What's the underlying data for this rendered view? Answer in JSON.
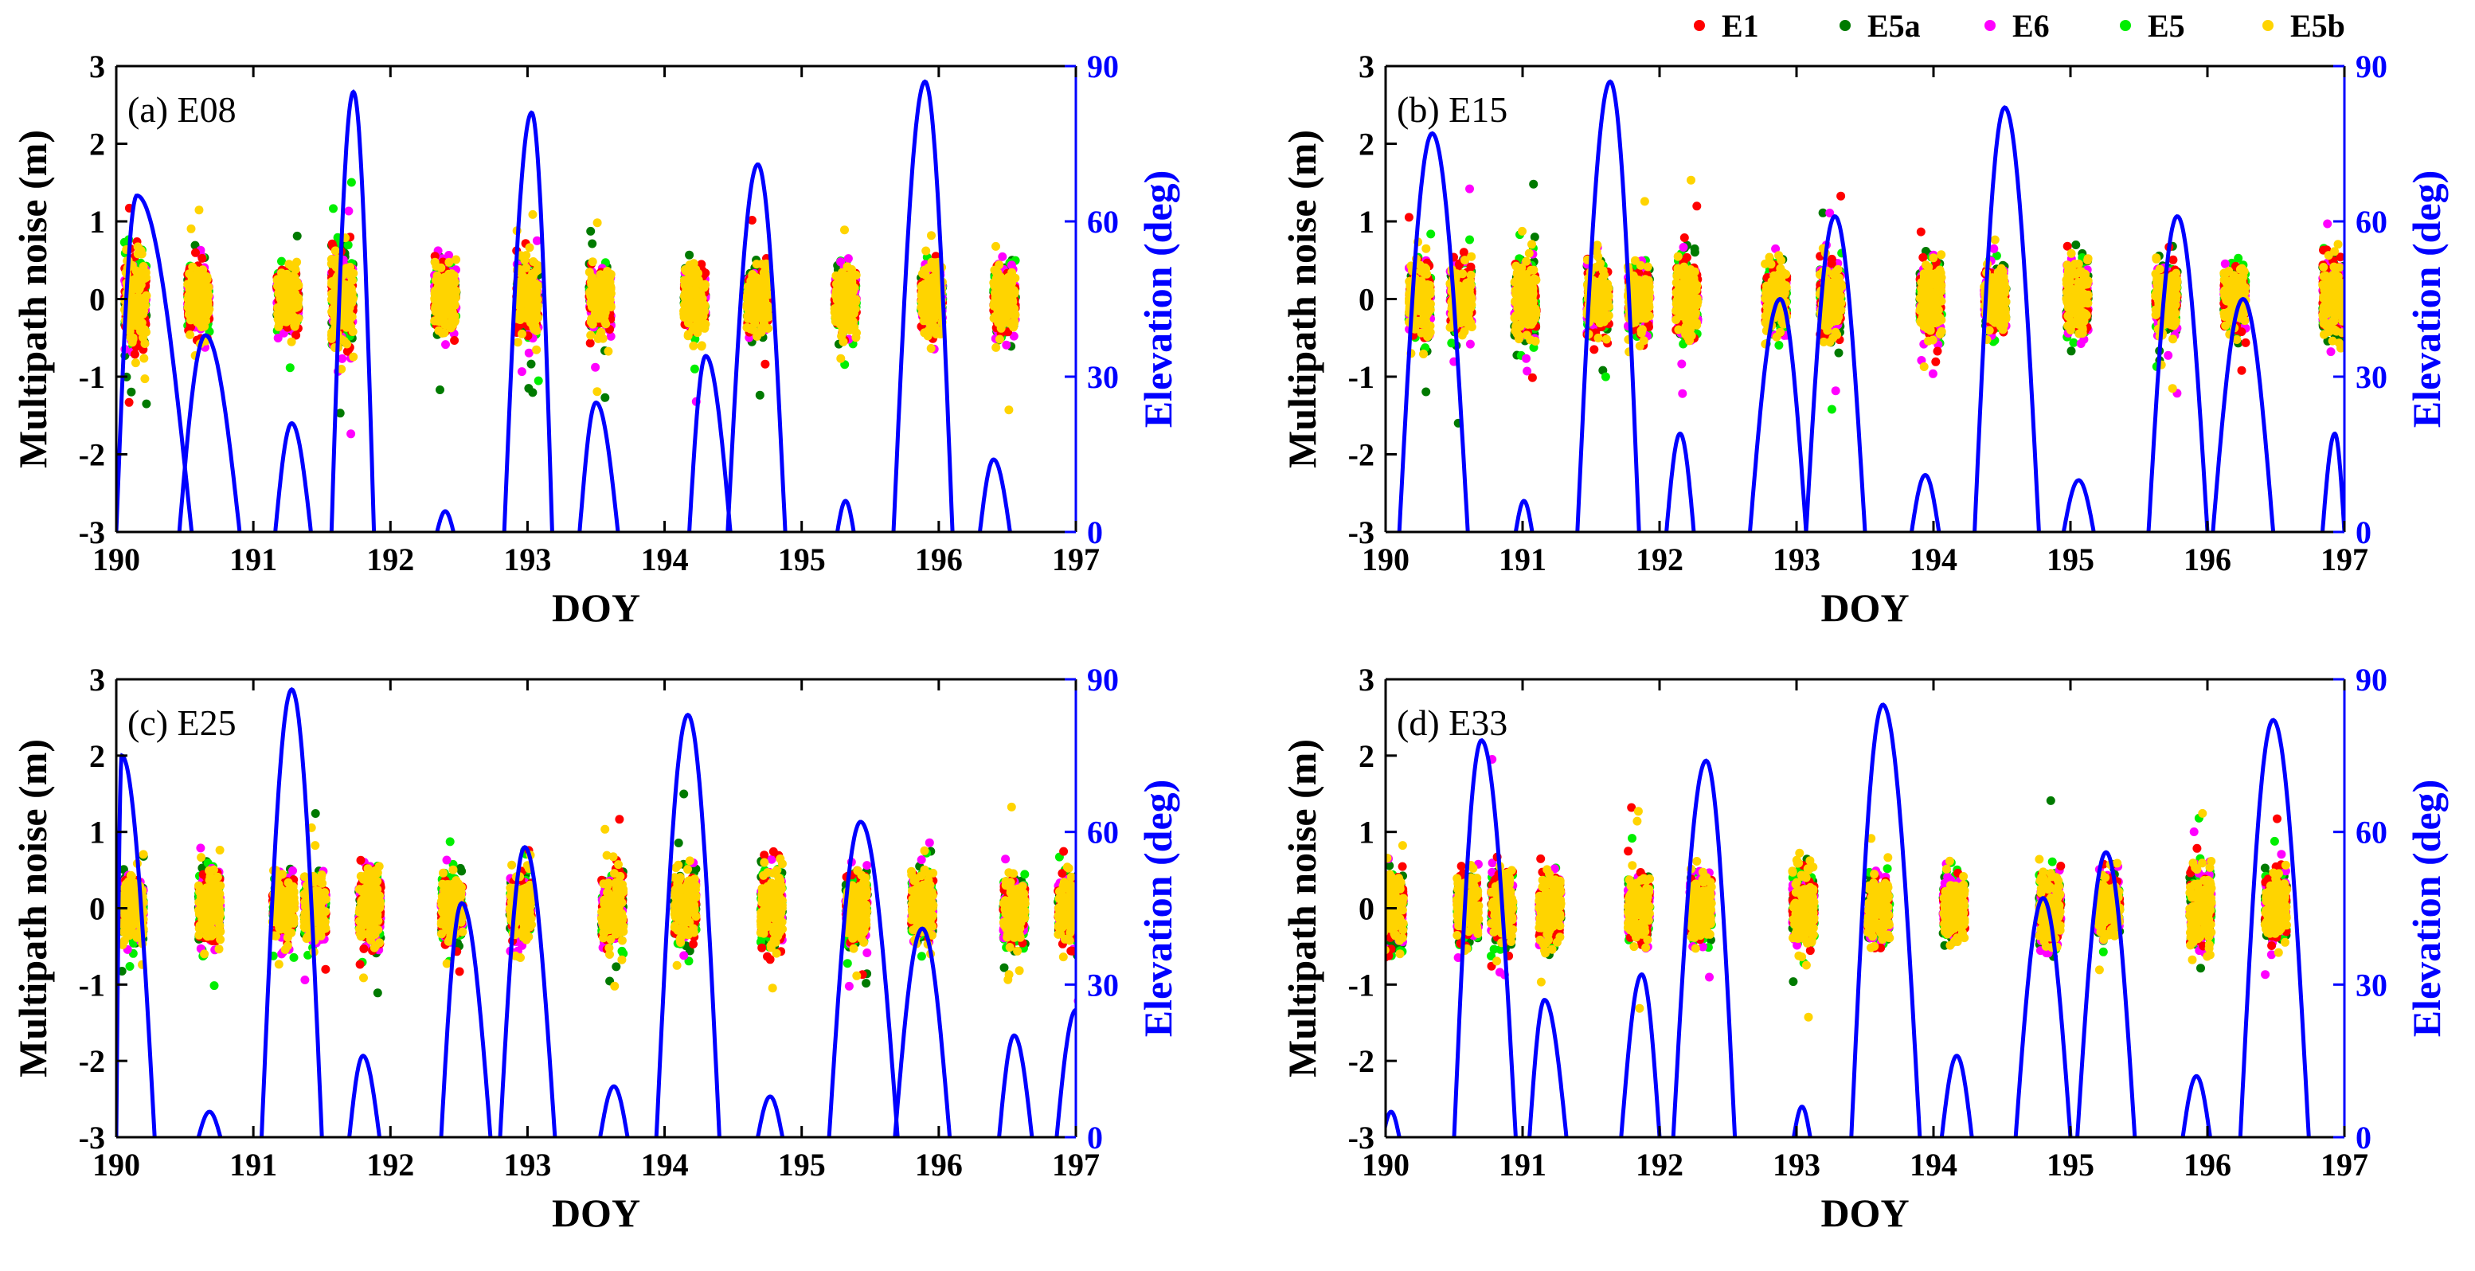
{
  "chart_data": [
    {
      "type": "scatter",
      "title": "(a) E08",
      "xlabel": "DOY",
      "ylabel": "Multipath noise (m)",
      "ylabel_right": "Elevation (deg)",
      "xlim": [
        190,
        197
      ],
      "ylim": [
        -3,
        3
      ],
      "ylim_right": [
        0,
        90
      ],
      "xticks": [
        "190",
        "191",
        "192",
        "193",
        "194",
        "195",
        "196",
        "197"
      ],
      "yticks": [
        "-3",
        "-2",
        "-1",
        "0",
        "1",
        "2",
        "3"
      ],
      "yticks_right": [
        "0",
        "30",
        "60",
        "90"
      ],
      "passes": [
        {
          "start": 190.0,
          "end": 190.55,
          "peak_doy": 190.15,
          "peak_elev": 65
        },
        {
          "start": 190.46,
          "end": 190.9,
          "peak_doy": 190.65,
          "peak_elev": 38
        },
        {
          "start": 191.16,
          "end": 191.42,
          "peak_doy": 191.28,
          "peak_elev": 21
        },
        {
          "start": 191.57,
          "end": 191.88,
          "peak_doy": 191.73,
          "peak_elev": 85
        },
        {
          "start": 192.34,
          "end": 192.46,
          "peak_doy": 192.4,
          "peak_elev": 4
        },
        {
          "start": 192.83,
          "end": 193.18,
          "peak_doy": 193.03,
          "peak_elev": 81
        },
        {
          "start": 193.38,
          "end": 193.66,
          "peak_doy": 193.5,
          "peak_elev": 25
        },
        {
          "start": 194.18,
          "end": 194.48,
          "peak_doy": 194.3,
          "peak_elev": 34
        },
        {
          "start": 194.46,
          "end": 194.88,
          "peak_doy": 194.68,
          "peak_elev": 71
        },
        {
          "start": 195.26,
          "end": 195.38,
          "peak_doy": 195.32,
          "peak_elev": 6
        },
        {
          "start": 195.67,
          "end": 196.1,
          "peak_doy": 195.9,
          "peak_elev": 87
        },
        {
          "start": 196.3,
          "end": 196.52,
          "peak_doy": 196.4,
          "peak_elev": 14
        }
      ],
      "noise_clusters": [
        {
          "doy": 190.14,
          "spread": 0.8
        },
        {
          "doy": 190.6,
          "spread": 0.6
        },
        {
          "doy": 191.25,
          "spread": 0.6
        },
        {
          "doy": 191.65,
          "spread": 0.9
        },
        {
          "doy": 192.4,
          "spread": 0.6
        },
        {
          "doy": 193.0,
          "spread": 0.7
        },
        {
          "doy": 193.53,
          "spread": 0.6
        },
        {
          "doy": 194.22,
          "spread": 0.6
        },
        {
          "doy": 194.68,
          "spread": 0.6
        },
        {
          "doy": 195.32,
          "spread": 0.6
        },
        {
          "doy": 195.95,
          "spread": 0.6
        },
        {
          "doy": 196.48,
          "spread": 0.6
        }
      ]
    },
    {
      "type": "scatter",
      "title": "(b) E15",
      "xlabel": "DOY",
      "ylabel": "Multipath noise (m)",
      "ylabel_right": "Elevation (deg)",
      "xlim": [
        190,
        197
      ],
      "ylim": [
        -3,
        3
      ],
      "ylim_right": [
        0,
        90
      ],
      "xticks": [
        "190",
        "191",
        "192",
        "193",
        "194",
        "195",
        "196",
        "197"
      ],
      "yticks": [
        "-3",
        "-2",
        "-1",
        "0",
        "1",
        "2",
        "3"
      ],
      "yticks_right": [
        "0",
        "30",
        "60",
        "90"
      ],
      "passes": [
        {
          "start": 190.1,
          "end": 190.6,
          "peak_doy": 190.34,
          "peak_elev": 77
        },
        {
          "start": 190.95,
          "end": 191.07,
          "peak_doy": 191.01,
          "peak_elev": 6
        },
        {
          "start": 191.4,
          "end": 191.85,
          "peak_doy": 191.64,
          "peak_elev": 87
        },
        {
          "start": 192.05,
          "end": 192.25,
          "peak_doy": 192.15,
          "peak_elev": 19
        },
        {
          "start": 192.66,
          "end": 193.07,
          "peak_doy": 192.88,
          "peak_elev": 45
        },
        {
          "start": 193.07,
          "end": 193.5,
          "peak_doy": 193.28,
          "peak_elev": 61
        },
        {
          "start": 193.84,
          "end": 194.04,
          "peak_doy": 193.94,
          "peak_elev": 11
        },
        {
          "start": 194.3,
          "end": 194.77,
          "peak_doy": 194.52,
          "peak_elev": 82
        },
        {
          "start": 194.95,
          "end": 195.17,
          "peak_doy": 195.06,
          "peak_elev": 10
        },
        {
          "start": 195.57,
          "end": 196.0,
          "peak_doy": 195.78,
          "peak_elev": 61
        },
        {
          "start": 196.04,
          "end": 196.48,
          "peak_doy": 196.26,
          "peak_elev": 45
        },
        {
          "start": 196.84,
          "end": 197.0,
          "peak_doy": 196.93,
          "peak_elev": 19
        }
      ],
      "noise_clusters": [
        {
          "doy": 190.25,
          "spread": 0.7
        },
        {
          "doy": 190.55,
          "spread": 0.6
        },
        {
          "doy": 191.02,
          "spread": 0.7
        },
        {
          "doy": 191.55,
          "spread": 0.6
        },
        {
          "doy": 191.85,
          "spread": 0.6
        },
        {
          "doy": 192.2,
          "spread": 0.7
        },
        {
          "doy": 192.85,
          "spread": 0.6
        },
        {
          "doy": 193.25,
          "spread": 0.7
        },
        {
          "doy": 193.98,
          "spread": 0.7
        },
        {
          "doy": 194.45,
          "spread": 0.6
        },
        {
          "doy": 195.05,
          "spread": 0.7
        },
        {
          "doy": 195.7,
          "spread": 0.6
        },
        {
          "doy": 196.2,
          "spread": 0.6
        },
        {
          "doy": 196.92,
          "spread": 0.7
        }
      ]
    },
    {
      "type": "scatter",
      "title": "(c) E25",
      "xlabel": "DOY",
      "ylabel": "Multipath noise (m)",
      "ylabel_right": "Elevation (deg)",
      "xlim": [
        190,
        197
      ],
      "ylim": [
        -3,
        3
      ],
      "ylim_right": [
        0,
        90
      ],
      "xticks": [
        "190",
        "191",
        "192",
        "193",
        "194",
        "195",
        "196",
        "197"
      ],
      "yticks": [
        "-3",
        "-2",
        "-1",
        "0",
        "1",
        "2",
        "3"
      ],
      "yticks_right": [
        "0",
        "30",
        "60",
        "90"
      ],
      "passes": [
        {
          "start": 190.0,
          "end": 190.28,
          "peak_doy": 190.04,
          "peak_elev": 75
        },
        {
          "start": 190.6,
          "end": 190.76,
          "peak_doy": 190.68,
          "peak_elev": 5
        },
        {
          "start": 191.06,
          "end": 191.5,
          "peak_doy": 191.28,
          "peak_elev": 88
        },
        {
          "start": 191.7,
          "end": 191.92,
          "peak_doy": 191.8,
          "peak_elev": 16
        },
        {
          "start": 192.37,
          "end": 192.73,
          "peak_doy": 192.52,
          "peak_elev": 46
        },
        {
          "start": 192.8,
          "end": 193.2,
          "peak_doy": 192.98,
          "peak_elev": 57
        },
        {
          "start": 193.53,
          "end": 193.73,
          "peak_doy": 193.63,
          "peak_elev": 10
        },
        {
          "start": 193.94,
          "end": 194.4,
          "peak_doy": 194.17,
          "peak_elev": 83
        },
        {
          "start": 194.68,
          "end": 194.86,
          "peak_doy": 194.77,
          "peak_elev": 8
        },
        {
          "start": 195.2,
          "end": 195.7,
          "peak_doy": 195.43,
          "peak_elev": 62
        },
        {
          "start": 195.68,
          "end": 196.08,
          "peak_doy": 195.88,
          "peak_elev": 41
        },
        {
          "start": 196.44,
          "end": 196.68,
          "peak_doy": 196.55,
          "peak_elev": 20
        },
        {
          "start": 196.86,
          "end": 197.0,
          "peak_doy": 197.0,
          "peak_elev": 25
        }
      ],
      "noise_clusters": [
        {
          "doy": 190.12,
          "spread": 0.6
        },
        {
          "doy": 190.68,
          "spread": 0.7
        },
        {
          "doy": 191.22,
          "spread": 0.6
        },
        {
          "doy": 191.45,
          "spread": 0.6
        },
        {
          "doy": 191.85,
          "spread": 0.7
        },
        {
          "doy": 192.45,
          "spread": 0.6
        },
        {
          "doy": 192.95,
          "spread": 0.6
        },
        {
          "doy": 193.62,
          "spread": 0.7
        },
        {
          "doy": 194.15,
          "spread": 0.6
        },
        {
          "doy": 194.78,
          "spread": 0.7
        },
        {
          "doy": 195.4,
          "spread": 0.6
        },
        {
          "doy": 195.88,
          "spread": 0.6
        },
        {
          "doy": 196.55,
          "spread": 0.6
        },
        {
          "doy": 196.95,
          "spread": 0.6
        }
      ]
    },
    {
      "type": "scatter",
      "title": "(d) E33",
      "xlabel": "DOY",
      "ylabel": "Multipath noise (m)",
      "ylabel_right": "Elevation (deg)",
      "xlim": [
        190,
        197
      ],
      "ylim": [
        -3,
        3
      ],
      "ylim_right": [
        0,
        90
      ],
      "xticks": [
        "190",
        "191",
        "192",
        "193",
        "194",
        "195",
        "196",
        "197"
      ],
      "yticks": [
        "-3",
        "-2",
        "-1",
        "0",
        "1",
        "2",
        "3"
      ],
      "yticks_right": [
        "0",
        "30",
        "60",
        "90"
      ],
      "passes": [
        {
          "start": 189.98,
          "end": 190.1,
          "peak_doy": 190.04,
          "peak_elev": 5
        },
        {
          "start": 190.5,
          "end": 190.95,
          "peak_doy": 190.7,
          "peak_elev": 78
        },
        {
          "start": 191.05,
          "end": 191.32,
          "peak_doy": 191.16,
          "peak_elev": 27
        },
        {
          "start": 191.72,
          "end": 192.0,
          "peak_doy": 191.87,
          "peak_elev": 32
        },
        {
          "start": 192.1,
          "end": 192.55,
          "peak_doy": 192.34,
          "peak_elev": 74
        },
        {
          "start": 192.98,
          "end": 193.1,
          "peak_doy": 193.04,
          "peak_elev": 6
        },
        {
          "start": 193.4,
          "end": 193.9,
          "peak_doy": 193.63,
          "peak_elev": 85
        },
        {
          "start": 194.06,
          "end": 194.28,
          "peak_doy": 194.17,
          "peak_elev": 16
        },
        {
          "start": 194.6,
          "end": 195.0,
          "peak_doy": 194.8,
          "peak_elev": 47
        },
        {
          "start": 195.05,
          "end": 195.47,
          "peak_doy": 195.26,
          "peak_elev": 56
        },
        {
          "start": 195.82,
          "end": 196.02,
          "peak_doy": 195.92,
          "peak_elev": 12
        },
        {
          "start": 196.24,
          "end": 196.74,
          "peak_doy": 196.48,
          "peak_elev": 82
        }
      ],
      "noise_clusters": [
        {
          "doy": 190.05,
          "spread": 0.7
        },
        {
          "doy": 190.6,
          "spread": 0.6
        },
        {
          "doy": 190.85,
          "spread": 0.7
        },
        {
          "doy": 191.2,
          "spread": 0.6
        },
        {
          "doy": 191.85,
          "spread": 0.6
        },
        {
          "doy": 192.3,
          "spread": 0.6
        },
        {
          "doy": 193.05,
          "spread": 0.7
        },
        {
          "doy": 193.6,
          "spread": 0.6
        },
        {
          "doy": 194.15,
          "spread": 0.6
        },
        {
          "doy": 194.85,
          "spread": 0.7
        },
        {
          "doy": 195.28,
          "spread": 0.6
        },
        {
          "doy": 195.95,
          "spread": 0.7
        },
        {
          "doy": 196.5,
          "spread": 0.6
        }
      ]
    }
  ],
  "legend": {
    "entries": [
      {
        "name": "E1",
        "color": "#ff0000"
      },
      {
        "name": "E5a",
        "color": "#007a00"
      },
      {
        "name": "E6",
        "color": "#ff00ff"
      },
      {
        "name": "E5",
        "color": "#00ee00"
      },
      {
        "name": "E5b",
        "color": "#ffd400"
      }
    ],
    "placement": "top-right"
  },
  "colors": {
    "elevation_line": "#0000ff",
    "right_axis": "#0000ff",
    "axis": "#000000"
  }
}
